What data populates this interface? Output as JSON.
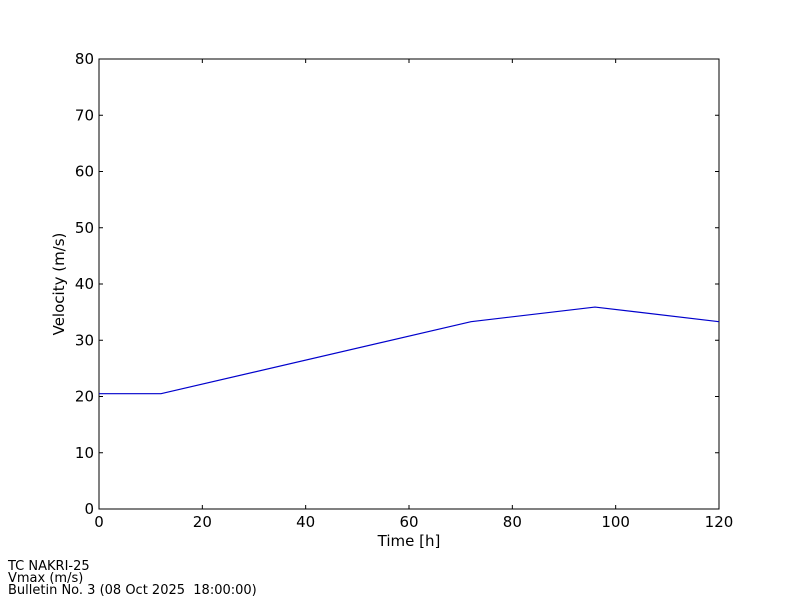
{
  "chart_data": {
    "type": "line",
    "x_label": "Time [h]",
    "y_label": "Velocity (m/s)",
    "x": [
      0,
      12,
      72,
      96,
      120
    ],
    "series": [
      {
        "color": "#0000cc",
        "values": [
          20.5,
          20.5,
          33.3,
          35.9,
          33.3
        ]
      }
    ],
    "xlim": [
      0,
      120
    ],
    "xticks": [
      0,
      20,
      40,
      60,
      80,
      100,
      120
    ],
    "ylim": [
      0,
      80
    ],
    "yticks": [
      0,
      10,
      20,
      30,
      40,
      50,
      60,
      70,
      80
    ],
    "grid": false,
    "footer": [
      "TC NAKRI-25",
      "Vmax (m/s)",
      "Bulletin No. 3 (08 Oct 2025  18:00:00)"
    ]
  }
}
